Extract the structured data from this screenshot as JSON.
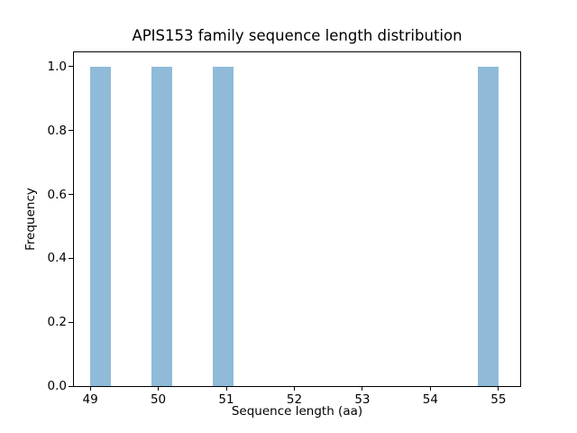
{
  "chart_data": {
    "type": "bar",
    "subtype": "histogram",
    "title": "APIS153 family sequence length distribution",
    "xlabel": "Sequence length (aa)",
    "ylabel": "Frequency",
    "bar_color": "#8fbbd9",
    "axis_color": "#000000",
    "background_color": "#ffffff",
    "grid": false,
    "legend": null,
    "xlim": [
      48.76,
      55.32
    ],
    "ylim": [
      0,
      1.045
    ],
    "x_ticks": [
      "49",
      "50",
      "51",
      "52",
      "53",
      "54",
      "55"
    ],
    "y_ticks": [
      "0.0",
      "0.2",
      "0.4",
      "0.6",
      "0.8",
      "1.0"
    ],
    "bars": [
      {
        "x0": 49.0,
        "x1": 49.3,
        "value": 1.0
      },
      {
        "x0": 49.9,
        "x1": 50.2,
        "value": 1.0
      },
      {
        "x0": 50.8,
        "x1": 51.1,
        "value": 1.0
      },
      {
        "x0": 54.7,
        "x1": 55.0,
        "value": 1.0
      }
    ]
  }
}
